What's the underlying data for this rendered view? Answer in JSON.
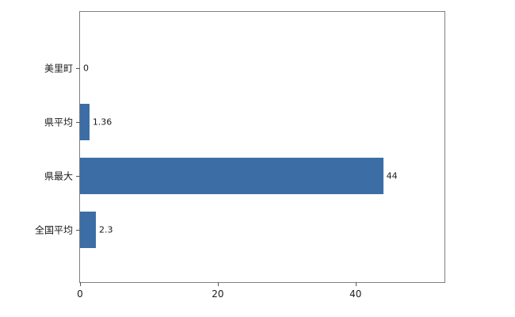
{
  "chart_data": {
    "type": "bar",
    "orientation": "horizontal",
    "title": "",
    "xlabel": "",
    "ylabel": "",
    "categories": [
      "美里町",
      "県平均",
      "県最大",
      "全国平均"
    ],
    "values": [
      0,
      1.36,
      44,
      2.3
    ],
    "value_labels": [
      "0",
      "1.36",
      "44",
      "2.3"
    ],
    "xlim": [
      0,
      52.9
    ],
    "xticks": [
      0,
      20,
      40
    ],
    "bar_color": "#3C6EA5",
    "axis_color": "#808080",
    "grid": false,
    "legend": "none"
  }
}
